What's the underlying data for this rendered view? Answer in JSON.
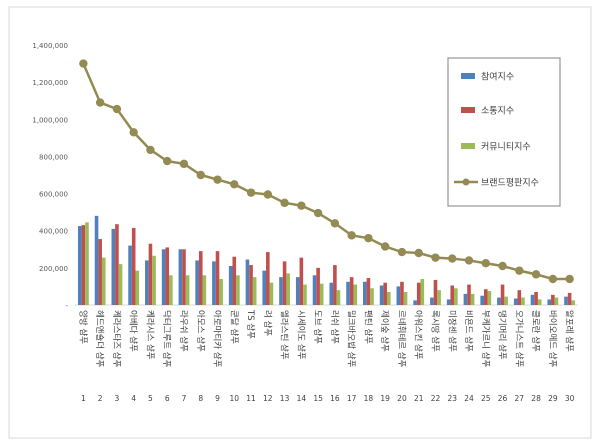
{
  "chart_data": {
    "type": "bar",
    "categories": [
      "양방 샴푸",
      "헤드앤숄더 샴푸",
      "케라스타즈 샴푸",
      "아베다 샴푸",
      "케라시스 샴푸",
      "닥터그루트 샴푸",
      "라우쉬 샴푸",
      "아모스 샴푸",
      "아로마티카 샴푸",
      "쿤달 샴푸",
      "TS 샴푸",
      "려 샴푸",
      "엘라스틴 샴푸",
      "시세이도 샴푸",
      "도브 샴푸",
      "러쉬 샴푸",
      "밀크바오밥 샴푸",
      "팬틴 샴푸",
      "제이숲 샴푸",
      "르네휘테르 샴푸",
      "아워스킨 샴푸",
      "록시땅 샴푸",
      "미장센 샴푸",
      "비욘드 샴푸",
      "부케가르니 샴푸",
      "댕기머리 샴푸",
      "오가니스트 샴푸",
      "클로란 샴푸",
      "바이오메드 샴푸",
      "알포레 샴푸"
    ],
    "ranks": [
      "1",
      "2",
      "3",
      "4",
      "5",
      "6",
      "7",
      "8",
      "9",
      "10",
      "11",
      "12",
      "13",
      "14",
      "15",
      "16",
      "17",
      "18",
      "19",
      "20",
      "21",
      "22",
      "23",
      "24",
      "25",
      "26",
      "27",
      "28",
      "29",
      "30"
    ],
    "series": [
      {
        "name": "참여지수",
        "color": "#4f81bd",
        "values": [
          425000,
          480000,
          410000,
          320000,
          240000,
          300000,
          300000,
          240000,
          235000,
          210000,
          245000,
          185000,
          150000,
          150000,
          160000,
          120000,
          125000,
          125000,
          105000,
          100000,
          25000,
          40000,
          30000,
          60000,
          50000,
          40000,
          35000,
          55000,
          30000,
          45000
        ]
      },
      {
        "name": "소통지수",
        "color": "#c0504d",
        "values": [
          430000,
          355000,
          435000,
          415000,
          330000,
          310000,
          300000,
          290000,
          290000,
          260000,
          215000,
          285000,
          235000,
          255000,
          200000,
          215000,
          150000,
          145000,
          120000,
          125000,
          120000,
          135000,
          105000,
          110000,
          85000,
          110000,
          80000,
          70000,
          55000,
          65000
        ]
      },
      {
        "name": "커뮤니티지수",
        "color": "#9bbb59",
        "values": [
          445000,
          255000,
          220000,
          185000,
          265000,
          160000,
          160000,
          160000,
          140000,
          160000,
          150000,
          120000,
          170000,
          110000,
          115000,
          80000,
          110000,
          90000,
          70000,
          70000,
          140000,
          80000,
          90000,
          60000,
          75000,
          45000,
          40000,
          30000,
          40000,
          25000
        ]
      },
      {
        "name": "브랜드평판지수",
        "color": "#948a54",
        "values": [
          1300000,
          1090000,
          1055000,
          930000,
          835000,
          775000,
          760000,
          700000,
          675000,
          650000,
          605000,
          595000,
          550000,
          535000,
          495000,
          440000,
          375000,
          360000,
          315000,
          285000,
          280000,
          255000,
          250000,
          240000,
          225000,
          210000,
          185000,
          165000,
          140000,
          140000
        ]
      }
    ],
    "y_ticks": [
      "-",
      "200,000",
      "400,000",
      "600,000",
      "800,000",
      "1,000,000",
      "1,200,000",
      "1,400,000"
    ],
    "ylim": [
      0,
      1400000
    ],
    "legend_position": "right",
    "grid": false
  }
}
